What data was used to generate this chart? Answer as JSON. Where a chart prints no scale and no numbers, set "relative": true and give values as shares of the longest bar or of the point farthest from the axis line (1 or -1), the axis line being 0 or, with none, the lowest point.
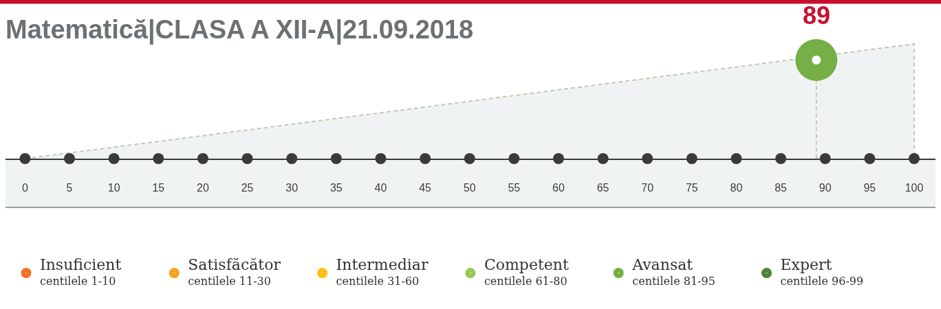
{
  "chart_data": {
    "type": "lollipop",
    "title": "Matematică|CLASA A XII-A|21.09.2018",
    "relative": true,
    "xlim": [
      -2.2,
      102.4
    ],
    "xticks": [
      0,
      5,
      10,
      15,
      20,
      25,
      30,
      35,
      40,
      45,
      50,
      55,
      60,
      65,
      70,
      75,
      80,
      85,
      90,
      95,
      100
    ],
    "legend": "bottom",
    "marker": "circle",
    "annotations": [
      {
        "text": "89",
        "x": 89,
        "y": 0.86
      }
    ],
    "series": [
      {
        "type": "area",
        "x": [
          0,
          100,
          100
        ],
        "values": [
          0,
          1,
          0
        ],
        "color": "#eff3f3",
        "line_style": "dashed",
        "marker": "none"
      },
      {
        "type": "scatter",
        "x": [
          0,
          5,
          10,
          15,
          20,
          25,
          30,
          35,
          40,
          45,
          50,
          55,
          60,
          65,
          70,
          75,
          80,
          85,
          90,
          95,
          100
        ],
        "values": [
          0,
          0,
          0,
          0,
          0,
          0,
          0,
          0,
          0,
          0,
          0,
          0,
          0,
          0,
          0,
          0,
          0,
          0,
          0,
          0,
          0
        ],
        "color": "#3a3a3a"
      },
      {
        "name": "Insuficient\ncentilele 1-10",
        "color": "#f37125"
      },
      {
        "name": "Satisfăcător\ncentilele 11-30",
        "color": "#f7a021"
      },
      {
        "name": "Intermediar\ncentilele 31-60",
        "color": "#fcc015"
      },
      {
        "name": "Competent\ncentilele 61-80",
        "color": "#96c954"
      },
      {
        "name": "Avansat\ncentilele 81-95",
        "color": "#75af45",
        "x": [
          89
        ],
        "values": [
          0.86
        ],
        "line_style": "dashed"
      },
      {
        "name": "Expert\ncentilele 96-99",
        "color": "#54823a"
      }
    ]
  }
}
